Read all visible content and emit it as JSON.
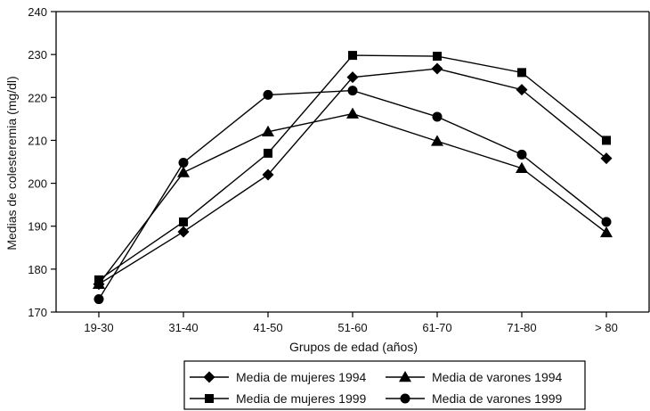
{
  "chart_data": {
    "type": "line",
    "xlabel": "Grupos de edad (años)",
    "ylabel": "Medias de colesteremia (mg/dl)",
    "ylim": [
      170,
      240
    ],
    "yticks": [
      170,
      180,
      190,
      200,
      210,
      220,
      230,
      240
    ],
    "categories": [
      "19-30",
      "31-40",
      "41-50",
      "51-60",
      "61-70",
      "71-80",
      "> 80"
    ],
    "grid": false,
    "legend_position": "bottom-center",
    "series": [
      {
        "name": "Media de mujeres 1994",
        "marker": "diamond",
        "values": [
          176.5,
          188.7,
          202.0,
          224.7,
          226.7,
          221.8,
          205.8
        ]
      },
      {
        "name": "Media de mujeres 1999",
        "marker": "square",
        "values": [
          177.5,
          191.0,
          207.0,
          229.8,
          229.6,
          225.8,
          210.0
        ]
      },
      {
        "name": "Media de varones 1994",
        "marker": "triangle",
        "values": [
          176.5,
          202.5,
          212.0,
          216.2,
          209.8,
          203.5,
          188.5
        ]
      },
      {
        "name": "Media de varones 1999",
        "marker": "circle",
        "values": [
          173.0,
          204.8,
          220.6,
          221.6,
          215.5,
          206.7,
          191.0
        ]
      }
    ],
    "colors": {
      "line": "#000000",
      "marker": "#000000"
    }
  }
}
